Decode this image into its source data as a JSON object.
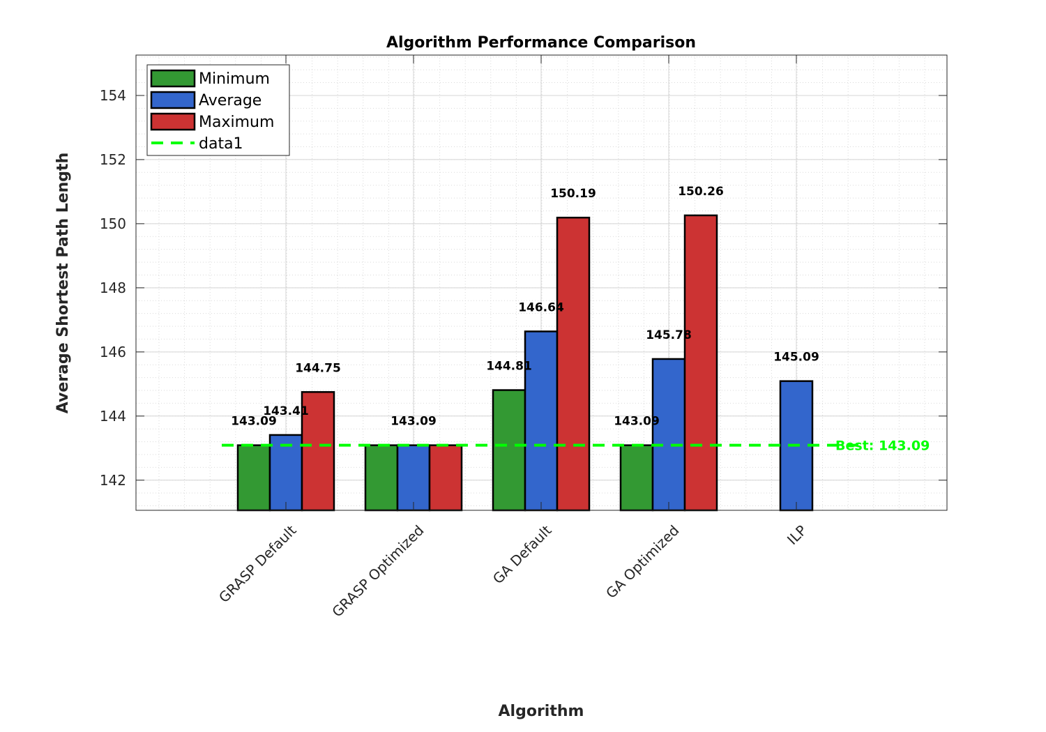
{
  "chart_data": {
    "type": "bar",
    "title": "Algorithm Performance Comparison",
    "xlabel": "Algorithm",
    "ylabel": "Average Shortest Path Length",
    "categories": [
      "GRASP Default",
      "GRASP Optimized",
      "GA Default",
      "GA Optimized",
      "ILP"
    ],
    "series": [
      {
        "name": "Minimum",
        "color": "#339933",
        "values": [
          143.09,
          143.09,
          144.81,
          143.09,
          null
        ]
      },
      {
        "name": "Average",
        "color": "#3366cc",
        "values": [
          143.41,
          143.09,
          146.64,
          145.78,
          145.09
        ]
      },
      {
        "name": "Maximum",
        "color": "#cc3333",
        "values": [
          144.75,
          143.09,
          150.19,
          150.26,
          null
        ]
      }
    ],
    "data_labels": [
      {
        "category": "GRASP Default",
        "series": "Minimum",
        "text": "143.09"
      },
      {
        "category": "GRASP Default",
        "series": "Average",
        "text": "143.41"
      },
      {
        "category": "GRASP Default",
        "series": "Maximum",
        "text": "144.75"
      },
      {
        "category": "GRASP Optimized",
        "series": "Average",
        "text": "143.09"
      },
      {
        "category": "GA Default",
        "series": "Minimum",
        "text": "144.81"
      },
      {
        "category": "GA Default",
        "series": "Average",
        "text": "146.64"
      },
      {
        "category": "GA Default",
        "series": "Maximum",
        "text": "150.19"
      },
      {
        "category": "GA Optimized",
        "series": "Minimum",
        "text": "143.09"
      },
      {
        "category": "GA Optimized",
        "series": "Average",
        "text": "145.78"
      },
      {
        "category": "GA Optimized",
        "series": "Maximum",
        "text": "150.26"
      },
      {
        "category": "ILP",
        "series": "Average",
        "text": "145.09"
      }
    ],
    "reference_line": {
      "name": "data1",
      "value": 143.09,
      "label": "Best: 143.09",
      "color": "#00ff00",
      "style": "dashed"
    },
    "ylim": [
      141.06,
      155.26
    ],
    "yticks": [
      142,
      144,
      146,
      148,
      150,
      152,
      154
    ],
    "grid": true,
    "minor_grid": true,
    "legend_position": "top-left"
  }
}
